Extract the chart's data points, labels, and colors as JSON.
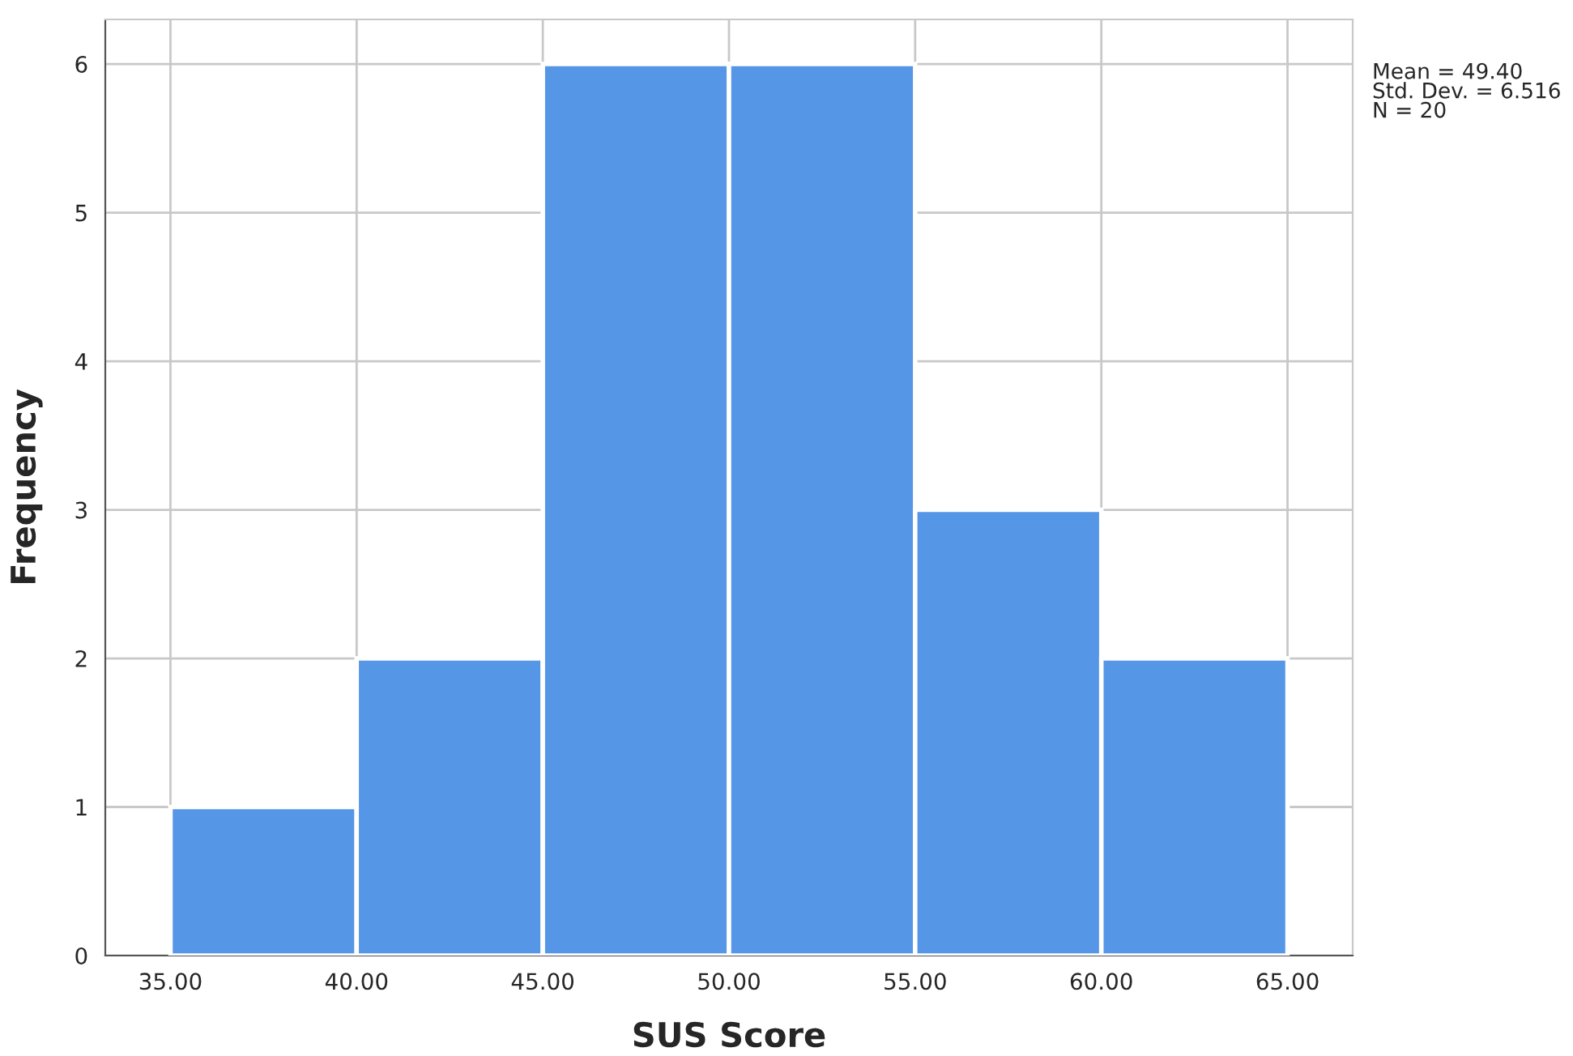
{
  "chart_data": {
    "type": "histogram",
    "xlabel": "SUS Score",
    "ylabel": "Frequency",
    "bins": [
      35,
      40,
      45,
      50,
      55,
      60,
      65
    ],
    "values": [
      1,
      2,
      6,
      6,
      3,
      2
    ],
    "color": "#5596e6",
    "xlim": [
      33.25,
      66.75
    ],
    "ylim": [
      0,
      6.3
    ],
    "xticks": [
      {
        "value": 35,
        "label": "35.00"
      },
      {
        "value": 40,
        "label": "40.00"
      },
      {
        "value": 45,
        "label": "45.00"
      },
      {
        "value": 50,
        "label": "50.00"
      },
      {
        "value": 55,
        "label": "55.00"
      },
      {
        "value": 60,
        "label": "60.00"
      },
      {
        "value": 65,
        "label": "65.00"
      }
    ],
    "yticks": [
      0,
      1,
      2,
      3,
      4,
      5,
      6
    ],
    "grid": true,
    "annotations": [
      "Mean = 49.40",
      "Std. Dev. = 6.516",
      "N = 20"
    ]
  }
}
